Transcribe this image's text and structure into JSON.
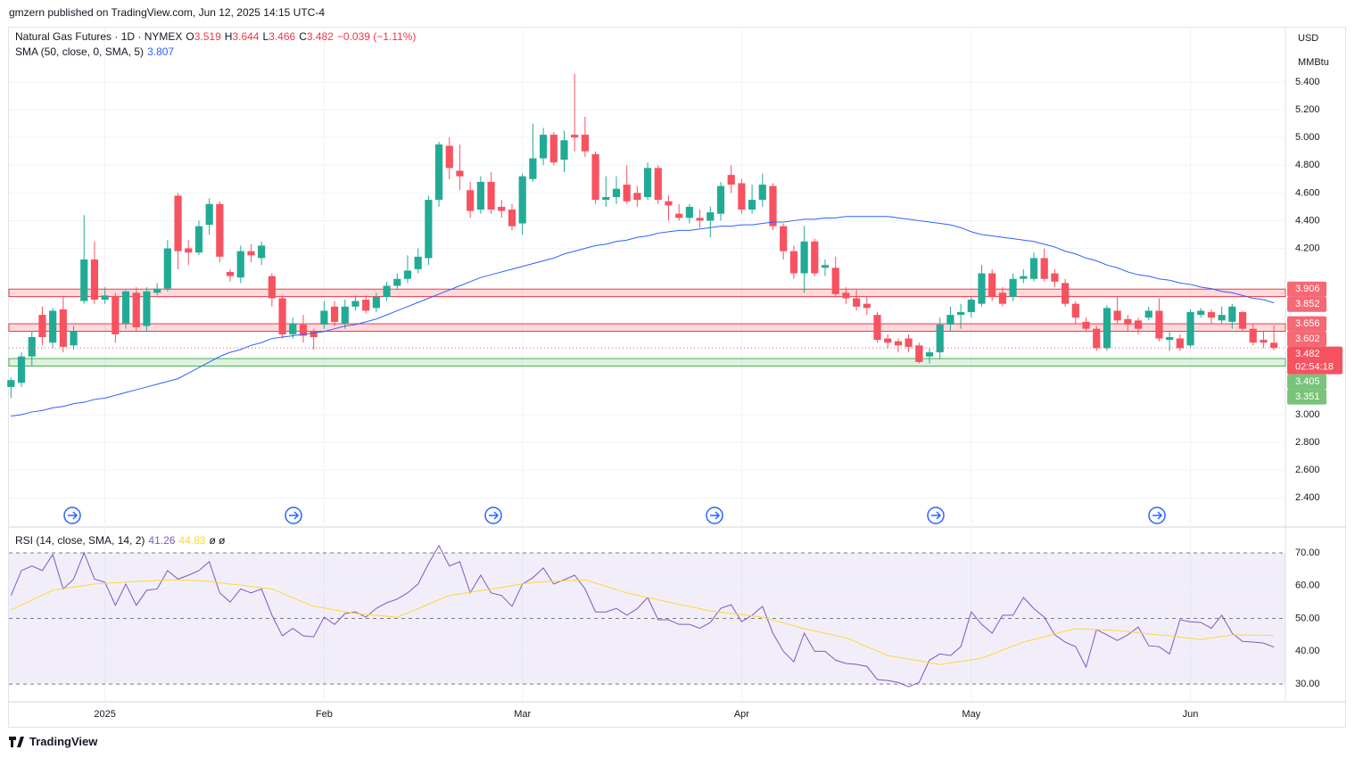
{
  "header": {
    "publisher": "gmzern published on TradingView.com, Jun 12, 2025 14:15 UTC-4"
  },
  "footer": {
    "brand": "TradingView"
  },
  "chart_data": [
    {
      "type": "candlestick",
      "title": "Natural Gas Futures · 1D · NYMEX",
      "ohlc_labels": [
        "O",
        "H",
        "L",
        "C"
      ],
      "change_label": "−0.039 (−1.11%)",
      "currency": "USD",
      "unit": "MMBtu",
      "countdown": "02:54:18",
      "up_color": "#22ab94",
      "down_color": "#f7525f",
      "grid": true,
      "open": [
        3.2,
        3.23,
        3.42,
        3.72,
        3.52,
        3.76,
        3.5,
        3.82,
        4.12,
        3.83,
        3.85,
        3.66,
        3.88,
        3.64,
        3.88,
        3.91,
        4.58,
        4.2,
        4.17,
        4.37,
        4.52,
        4.03,
        3.99,
        4.18,
        4.13,
        4.0,
        3.84,
        3.58,
        3.65,
        3.6,
        3.65,
        3.78,
        3.66,
        3.78,
        3.83,
        3.77,
        3.85,
        3.93,
        3.98,
        4.05,
        4.13,
        4.55,
        4.94,
        4.76,
        4.62,
        4.48,
        4.68,
        4.5,
        4.48,
        4.38,
        4.7,
        4.85,
        5.02,
        4.84,
        5.02,
        5.02,
        4.88,
        4.55,
        4.57,
        4.66,
        4.6,
        4.57,
        4.78,
        4.54,
        4.45,
        4.42,
        4.42,
        4.4,
        4.45,
        4.73,
        4.67,
        4.48,
        4.55,
        4.65,
        4.36,
        4.18,
        4.02,
        4.25,
        4.06,
        4.06,
        3.88,
        3.84,
        3.8,
        3.72,
        3.55,
        3.53,
        3.55,
        3.5,
        3.42,
        3.45,
        3.65,
        3.72,
        3.74,
        3.8,
        4.02,
        3.88,
        3.85,
        3.98,
        3.98,
        4.13,
        4.02,
        3.95,
        3.8,
        3.67,
        3.62,
        3.48,
        3.75,
        3.69,
        3.68,
        3.7,
        3.75,
        3.54,
        3.55,
        3.5,
        3.72,
        3.74,
        3.68,
        3.67,
        3.74,
        3.62,
        3.54,
        3.519
      ],
      "high": [
        3.27,
        3.45,
        3.6,
        3.78,
        3.77,
        3.85,
        3.64,
        4.44,
        4.25,
        3.92,
        3.88,
        3.9,
        3.92,
        3.92,
        3.95,
        4.26,
        4.6,
        4.26,
        4.4,
        4.56,
        4.54,
        4.05,
        4.22,
        4.23,
        4.25,
        4.02,
        3.86,
        3.7,
        3.72,
        3.62,
        3.82,
        3.82,
        3.83,
        3.86,
        3.86,
        3.88,
        3.96,
        4.02,
        4.15,
        4.2,
        4.58,
        4.97,
        5.0,
        4.95,
        4.68,
        4.72,
        4.75,
        4.55,
        4.52,
        4.74,
        5.1,
        5.07,
        5.04,
        5.05,
        5.46,
        5.15,
        4.9,
        4.72,
        4.72,
        4.8,
        4.65,
        4.82,
        4.8,
        4.58,
        4.52,
        4.52,
        4.48,
        4.5,
        4.68,
        4.8,
        4.7,
        4.66,
        4.74,
        4.67,
        4.38,
        4.22,
        4.36,
        4.27,
        4.12,
        4.14,
        3.92,
        3.9,
        3.85,
        3.74,
        3.58,
        3.55,
        3.58,
        3.52,
        3.48,
        3.7,
        3.78,
        3.8,
        3.85,
        4.08,
        4.05,
        3.92,
        4.02,
        4.05,
        4.17,
        4.2,
        4.05,
        3.98,
        3.82,
        3.7,
        3.64,
        3.79,
        3.85,
        3.72,
        3.7,
        3.78,
        3.84,
        3.6,
        3.58,
        3.76,
        3.77,
        3.76,
        3.78,
        3.8,
        3.75,
        3.66,
        3.6,
        3.644
      ],
      "low": [
        3.12,
        3.2,
        3.35,
        3.5,
        3.48,
        3.45,
        3.47,
        3.8,
        3.8,
        3.8,
        3.52,
        3.62,
        3.6,
        3.6,
        3.86,
        3.89,
        4.05,
        4.08,
        4.15,
        4.3,
        4.1,
        3.96,
        3.95,
        4.1,
        4.08,
        3.78,
        3.55,
        3.55,
        3.52,
        3.47,
        3.62,
        3.64,
        3.62,
        3.75,
        3.73,
        3.74,
        3.82,
        3.9,
        3.95,
        4.02,
        4.08,
        4.5,
        4.7,
        4.62,
        4.42,
        4.45,
        4.45,
        4.42,
        4.33,
        4.3,
        4.68,
        4.8,
        4.8,
        4.75,
        4.9,
        4.86,
        4.52,
        4.5,
        4.52,
        4.52,
        4.5,
        4.55,
        4.52,
        4.4,
        4.4,
        4.38,
        4.35,
        4.28,
        4.4,
        4.6,
        4.45,
        4.45,
        4.5,
        4.33,
        4.12,
        3.98,
        3.88,
        4.0,
        4.0,
        3.85,
        3.8,
        3.75,
        3.72,
        3.52,
        3.48,
        3.45,
        3.45,
        3.37,
        3.37,
        3.4,
        3.6,
        3.62,
        3.7,
        3.78,
        3.82,
        3.78,
        3.82,
        3.95,
        3.96,
        3.96,
        3.92,
        3.78,
        3.66,
        3.6,
        3.46,
        3.46,
        3.66,
        3.6,
        3.58,
        3.68,
        3.53,
        3.46,
        3.46,
        3.48,
        3.7,
        3.66,
        3.66,
        3.62,
        3.6,
        3.5,
        3.48,
        3.466
      ],
      "close": [
        3.25,
        3.42,
        3.56,
        3.56,
        3.75,
        3.49,
        3.6,
        4.12,
        3.83,
        3.86,
        3.58,
        3.89,
        3.63,
        3.89,
        3.91,
        4.2,
        4.18,
        4.17,
        4.36,
        4.52,
        4.14,
        4.0,
        4.18,
        4.15,
        4.22,
        3.84,
        3.58,
        3.66,
        3.57,
        3.56,
        3.75,
        3.67,
        3.78,
        3.82,
        3.75,
        3.85,
        3.93,
        3.98,
        4.04,
        4.14,
        4.55,
        4.95,
        4.78,
        4.72,
        4.47,
        4.68,
        4.48,
        4.47,
        4.36,
        4.72,
        4.85,
        5.02,
        4.82,
        4.98,
        5.0,
        4.9,
        4.55,
        4.57,
        4.63,
        4.54,
        4.55,
        4.78,
        4.55,
        4.51,
        4.42,
        4.5,
        4.4,
        4.46,
        4.65,
        4.66,
        4.48,
        4.55,
        4.66,
        4.36,
        4.18,
        4.02,
        4.25,
        4.02,
        4.08,
        3.87,
        3.84,
        3.78,
        3.77,
        3.54,
        3.52,
        3.5,
        3.49,
        3.38,
        3.45,
        3.65,
        3.72,
        3.74,
        3.83,
        4.02,
        3.85,
        3.8,
        3.98,
        4.0,
        4.13,
        3.98,
        3.96,
        3.8,
        3.7,
        3.62,
        3.48,
        3.77,
        3.68,
        3.65,
        3.62,
        3.75,
        3.55,
        3.56,
        3.48,
        3.74,
        3.75,
        3.7,
        3.72,
        3.78,
        3.62,
        3.52,
        3.52,
        3.482
      ],
      "series": [
        {
          "name": "SMA (50, close, 0, SMA, 5)",
          "color": "#2962ff",
          "values": [
            2.99,
            3.0,
            3.02,
            3.03,
            3.05,
            3.06,
            3.08,
            3.09,
            3.11,
            3.12,
            3.14,
            3.16,
            3.18,
            3.2,
            3.22,
            3.24,
            3.26,
            3.3,
            3.34,
            3.38,
            3.42,
            3.45,
            3.47,
            3.5,
            3.52,
            3.55,
            3.56,
            3.57,
            3.58,
            3.59,
            3.6,
            3.62,
            3.64,
            3.65,
            3.67,
            3.69,
            3.72,
            3.75,
            3.78,
            3.81,
            3.84,
            3.87,
            3.9,
            3.93,
            3.96,
            3.99,
            4.01,
            4.03,
            4.05,
            4.07,
            4.09,
            4.11,
            4.13,
            4.16,
            4.18,
            4.2,
            4.22,
            4.23,
            4.25,
            4.26,
            4.28,
            4.29,
            4.31,
            4.32,
            4.33,
            4.33,
            4.34,
            4.35,
            4.36,
            4.36,
            4.37,
            4.37,
            4.38,
            4.39,
            4.39,
            4.4,
            4.41,
            4.41,
            4.42,
            4.42,
            4.43,
            4.43,
            4.43,
            4.43,
            4.43,
            4.42,
            4.41,
            4.4,
            4.39,
            4.38,
            4.37,
            4.35,
            4.32,
            4.3,
            4.29,
            4.28,
            4.27,
            4.26,
            4.25,
            4.23,
            4.21,
            4.18,
            4.16,
            4.13,
            4.11,
            4.08,
            4.06,
            4.03,
            4.01,
            4.0,
            3.98,
            3.97,
            3.95,
            3.94,
            3.92,
            3.91,
            3.89,
            3.88,
            3.86,
            3.84,
            3.83,
            3.807
          ]
        }
      ],
      "zones": [
        {
          "high": 3.906,
          "low": 3.852,
          "color": "#f23645"
        },
        {
          "high": 3.656,
          "low": 3.602,
          "color": "#f23645"
        },
        {
          "high": 3.405,
          "low": 3.351,
          "color": "#4caf50"
        }
      ],
      "xlim": [
        -0.2,
        122.1
      ],
      "xticks": [
        {
          "value": 9,
          "label": "2025"
        },
        {
          "value": 30,
          "label": "Feb"
        },
        {
          "value": 49,
          "label": "Mar"
        },
        {
          "value": 70,
          "label": "Apr"
        },
        {
          "value": 92,
          "label": "May"
        },
        {
          "value": 113,
          "label": "Jun"
        }
      ],
      "ylim": [
        2.196,
        5.799
      ],
      "yticks": [
        {
          "value": 2.4,
          "label": "2.400"
        },
        {
          "value": 2.6,
          "label": "2.600"
        },
        {
          "value": 2.8,
          "label": "2.800"
        },
        {
          "value": 3.0,
          "label": "3.000"
        },
        {
          "value": 4.2,
          "label": "4.200"
        },
        {
          "value": 4.4,
          "label": "4.400"
        },
        {
          "value": 4.6,
          "label": "4.600"
        },
        {
          "value": 4.8,
          "label": "4.800"
        },
        {
          "value": 5.0,
          "label": "5.000"
        },
        {
          "value": 5.2,
          "label": "5.200"
        },
        {
          "value": 5.4,
          "label": "5.400"
        }
      ]
    },
    {
      "type": "line",
      "title": "RSI (14, close, SMA, 14, 2)",
      "flags": "ø ø",
      "band_color": "#7e57c2",
      "xlim": [
        -0.2,
        122.1
      ],
      "series": [
        {
          "color": "#7e57c2",
          "values": [
            57,
            64.6,
            66,
            64.6,
            69.5,
            59,
            62,
            70,
            62,
            61,
            54,
            60.5,
            54,
            58.6,
            59,
            64.6,
            62,
            63.2,
            64.6,
            67.3,
            57.8,
            55,
            59,
            57.8,
            59,
            51,
            44.7,
            47,
            44.7,
            44.4,
            50.4,
            48.2,
            51.5,
            52,
            50.4,
            53.1,
            54.8,
            55.9,
            57.8,
            60.5,
            66.7,
            72.2,
            66,
            67.3,
            57.8,
            63.2,
            57.8,
            57,
            53.7,
            60.5,
            62.4,
            65.4,
            60.5,
            61.8,
            63.2,
            59,
            52,
            52,
            53.1,
            51,
            53,
            56.4,
            49.6,
            49.6,
            48.2,
            48.2,
            47,
            48.8,
            53.1,
            54.2,
            49,
            51,
            53.7,
            45.5,
            40,
            36.8,
            45.5,
            40,
            40,
            37.3,
            36.3,
            36,
            35.4,
            31.4,
            31.1,
            30.5,
            29.2,
            30.5,
            37.3,
            39.2,
            38.7,
            41.4,
            52,
            48.2,
            45.5,
            51,
            51,
            56.4,
            53,
            50.4,
            45,
            42.8,
            41.4,
            35.2,
            46.6,
            45,
            43.3,
            45,
            47.4,
            41.7,
            41.4,
            39.2,
            49.6,
            49,
            48.8,
            47,
            51,
            45.5,
            43,
            42.8,
            42.5,
            41.26
          ]
        },
        {
          "color": "#fdd835",
          "values": [
            52.6,
            54.1,
            55.6,
            57.1,
            58.6,
            59.1,
            59.6,
            60.0,
            60.5,
            60.7,
            60.9,
            61.1,
            61.3,
            61.4,
            61.6,
            61.7,
            61.8,
            61.6,
            61.5,
            61.3,
            60.9,
            60.5,
            60.2,
            59.8,
            59.4,
            59.0,
            57.7,
            56.3,
            55.0,
            53.7,
            53.2,
            52.6,
            52.1,
            51.5,
            51.2,
            51.0,
            50.7,
            50.4,
            51.7,
            53.0,
            54.4,
            55.7,
            57.0,
            57.5,
            58.0,
            58.5,
            59.0,
            59.5,
            60.0,
            60.5,
            61.0,
            61.2,
            61.3,
            61.5,
            61.6,
            61.8,
            60.8,
            59.8,
            58.8,
            57.8,
            57.1,
            56.4,
            55.7,
            55.0,
            54.3,
            53.7,
            53.0,
            52.3,
            51.9,
            51.5,
            51.2,
            50.8,
            50.4,
            49.5,
            48.6,
            47.8,
            46.9,
            46.2,
            45.5,
            44.8,
            44.1,
            42.8,
            41.4,
            40.1,
            38.7,
            38.2,
            37.6,
            37.1,
            36.5,
            36.0,
            36.5,
            36.9,
            37.4,
            37.9,
            39.1,
            40.4,
            41.6,
            42.8,
            43.6,
            44.4,
            45.3,
            46.1,
            46.9,
            46.8,
            46.6,
            46.5,
            46.3,
            46.0,
            45.6,
            45.3,
            45.0,
            44.7,
            44.3,
            44.0,
            43.6,
            44.1,
            44.5,
            45.0,
            45.0,
            44.9,
            44.9,
            44.83
          ]
        }
      ],
      "ylim": [
        24.6,
        77.6
      ],
      "yticks": [
        {
          "value": 30,
          "label": "30.00"
        },
        {
          "value": 40,
          "label": "40.00"
        },
        {
          "value": 50,
          "label": "50.00"
        },
        {
          "value": 60,
          "label": "60.00"
        },
        {
          "value": 70,
          "label": "70.00"
        }
      ]
    }
  ]
}
